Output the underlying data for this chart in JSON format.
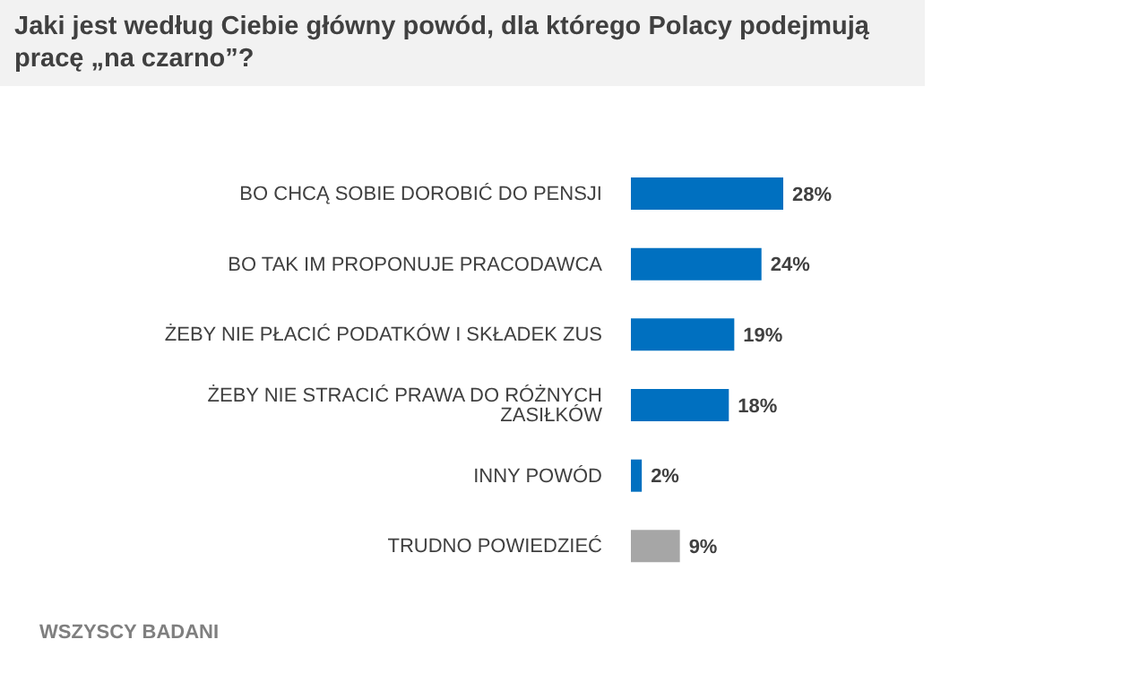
{
  "chart_data": {
    "type": "bar",
    "orientation": "horizontal",
    "title": "Jaki jest według Ciebie główny powód, dla którego Polacy podejmują pracę „na czarno”?",
    "categories": [
      "BO CHCĄ SOBIE DOROBIĆ DO PENSJI",
      "BO TAK IM PROPONUJE PRACODAWCA",
      "ŻEBY NIE PŁACIĆ PODATKÓW I SKŁADEK ZUS",
      "ŻEBY NIE STRACIĆ PRAWA DO RÓŻNYCH ZASIŁKÓW",
      "INNY POWÓD",
      "TRUDNO POWIEDZIEĆ"
    ],
    "values": [
      28,
      24,
      19,
      18,
      2,
      9
    ],
    "colors": [
      "#0070c0",
      "#0070c0",
      "#0070c0",
      "#0070c0",
      "#0070c0",
      "#a6a6a6"
    ],
    "value_labels": [
      "28%",
      "24%",
      "19%",
      "18%",
      "2%",
      "9%"
    ],
    "annotations": [
      "WSZYSCY BADANI"
    ]
  }
}
